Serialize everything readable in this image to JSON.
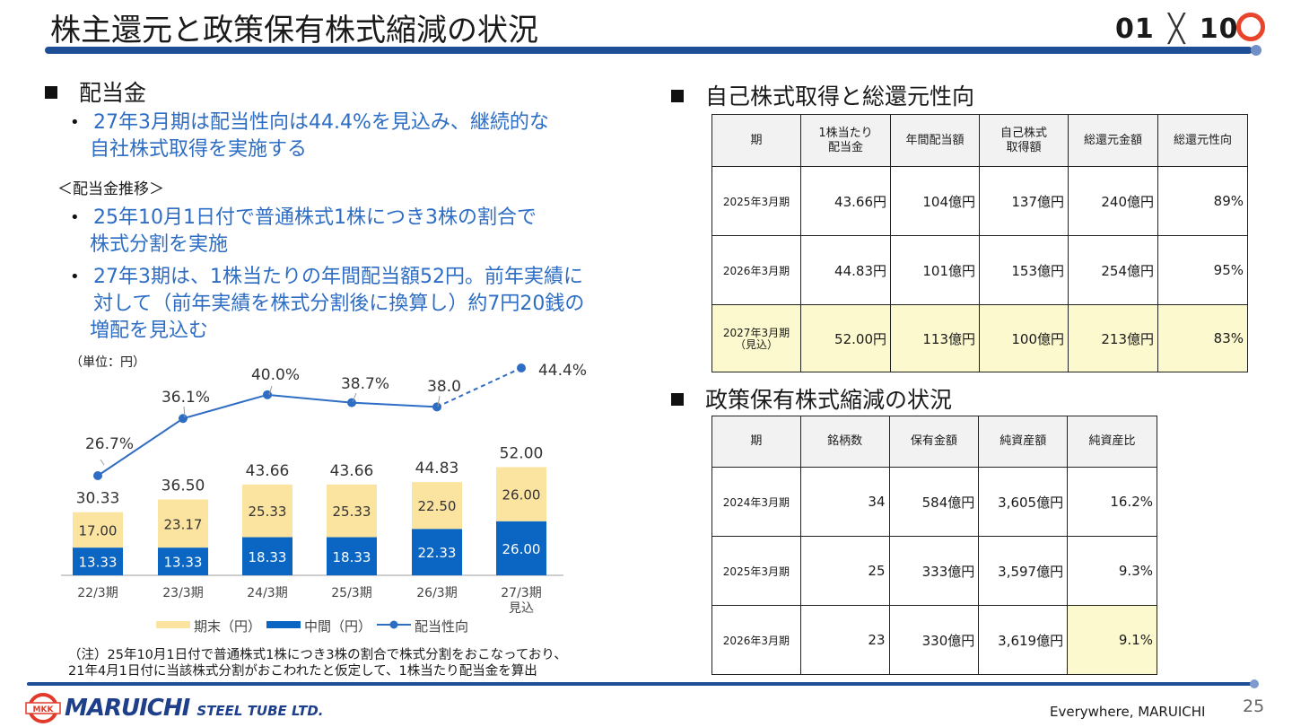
{
  "header": {
    "title": "株主還元と政策保有株式縮減の状況",
    "logo_text_a": "01",
    "logo_text_b": "1",
    "logo_text_c": "0"
  },
  "dividend": {
    "heading": "配当金",
    "bullet1": "27年3月期は配当性向は44.4%を見込み、継続的な自社株式取得を実施する",
    "bullet1_l1": "27年3月期は配当性向は44.4%を見込み、継続的な",
    "bullet1_l2": "自社株式取得を実施する",
    "subheading": "＜配当金推移＞",
    "bullet2_l1": "25年10月1日付で普通株式1株につき3株の割合で",
    "bullet2_l2": "株式分割を実施",
    "bullet3_l1": "27年3期は、1株当たりの年間配当額52円。前年実績に",
    "bullet3_l2": "対して（前年実績を株式分割後に換算し）約7円20銭の",
    "bullet3_l3": "増配を見込む",
    "unit": "（単位：円）",
    "note_l1": "（注）25年10月1日付で普通株式1株につき3株の割合で株式分割をおこなっており、",
    "note_l2": "21年4月1日付に当該株式分割がおこわれたと仮定して、1株当たり配当金を算出"
  },
  "chart_data": {
    "type": "bar",
    "stacked": true,
    "categories": [
      "22/3期",
      "23/3期",
      "24/3期",
      "25/3期",
      "26/3期",
      "27/3期\n見込"
    ],
    "category_labels": [
      [
        "22/3期"
      ],
      [
        "23/3期"
      ],
      [
        "24/3期"
      ],
      [
        "25/3期"
      ],
      [
        "26/3期"
      ],
      [
        "27/3期",
        "見込"
      ]
    ],
    "series": [
      {
        "name": "中間（円）",
        "values": [
          13.33,
          13.33,
          18.33,
          18.33,
          22.33,
          26.0
        ],
        "labels": [
          "13.33",
          "13.33",
          "18.33",
          "18.33",
          "22.33",
          "26.00"
        ],
        "color": "#0a66c2"
      },
      {
        "name": "期末（円）",
        "values": [
          17.0,
          23.17,
          25.33,
          25.33,
          22.5,
          26.0
        ],
        "labels": [
          "17.00",
          "23.17",
          "25.33",
          "25.33",
          "22.50",
          "26.00"
        ],
        "color": "#fbe3a0"
      }
    ],
    "totals": [
      "30.33",
      "36.50",
      "43.66",
      "43.66",
      "44.83",
      "52.00"
    ],
    "payout_ratio": {
      "name": "配当性向",
      "values": [
        26.7,
        36.1,
        40.0,
        38.7,
        38.0,
        44.4
      ],
      "labels": [
        "26.7%",
        "36.1%",
        "40.0%",
        "38.7%",
        "38.0",
        "44.4%"
      ],
      "color": "#2e6dc4",
      "last_segment_dashed": true
    },
    "legend": [
      "期末（円）",
      "中間（円）",
      "配当性向"
    ],
    "legend_position": "bottom",
    "ylim": [
      0,
      52
    ],
    "ratio_range": [
      26.7,
      44.4
    ]
  },
  "buyback": {
    "heading": "自己株式取得と総還元性向",
    "headers": [
      "期",
      "1株当たり\n配当金",
      "年間配当額",
      "自己株式\n取得額",
      "総還元金額",
      "総還元性向"
    ],
    "header_lines": [
      [
        "期"
      ],
      [
        "1株当たり",
        "配当金"
      ],
      [
        "年間配当額"
      ],
      [
        "自己株式",
        "取得額"
      ],
      [
        "総還元金額"
      ],
      [
        "総還元性向"
      ]
    ],
    "rows": [
      {
        "period": "2025年3月期",
        "sub": "",
        "cells": [
          "43.66円",
          "104億円",
          "137億円",
          "240億円",
          "89%"
        ],
        "highlight": false
      },
      {
        "period": "2026年3月期",
        "sub": "",
        "cells": [
          "44.83円",
          "101億円",
          "153億円",
          "254億円",
          "95%"
        ],
        "highlight": false
      },
      {
        "period": "2027年3月期",
        "sub": "（見込）",
        "cells": [
          "52.00円",
          "113億円",
          "100億円",
          "213億円",
          "83%"
        ],
        "highlight": true
      }
    ]
  },
  "holdings": {
    "heading": "政策保有株式縮減の状況",
    "headers": [
      "期",
      "銘柄数",
      "保有金額",
      "純資産額",
      "純資産比"
    ],
    "rows": [
      {
        "period": "2024年3月期",
        "cells": [
          "34",
          "584億円",
          "3,605億円",
          "16.2%"
        ],
        "highlight_last": false
      },
      {
        "period": "2025年3月期",
        "cells": [
          "25",
          "333億円",
          "3,597億円",
          "9.3%"
        ],
        "highlight_last": false
      },
      {
        "period": "2026年3月期",
        "cells": [
          "23",
          "330億円",
          "3,619億円",
          "9.1%"
        ],
        "highlight_last": true
      }
    ]
  },
  "footer": {
    "brand": "MARUICHI",
    "brand_sub": "STEEL TUBE LTD.",
    "mkk": "MKK",
    "tagline": "Everywhere, MARUICHI",
    "page": "25"
  }
}
